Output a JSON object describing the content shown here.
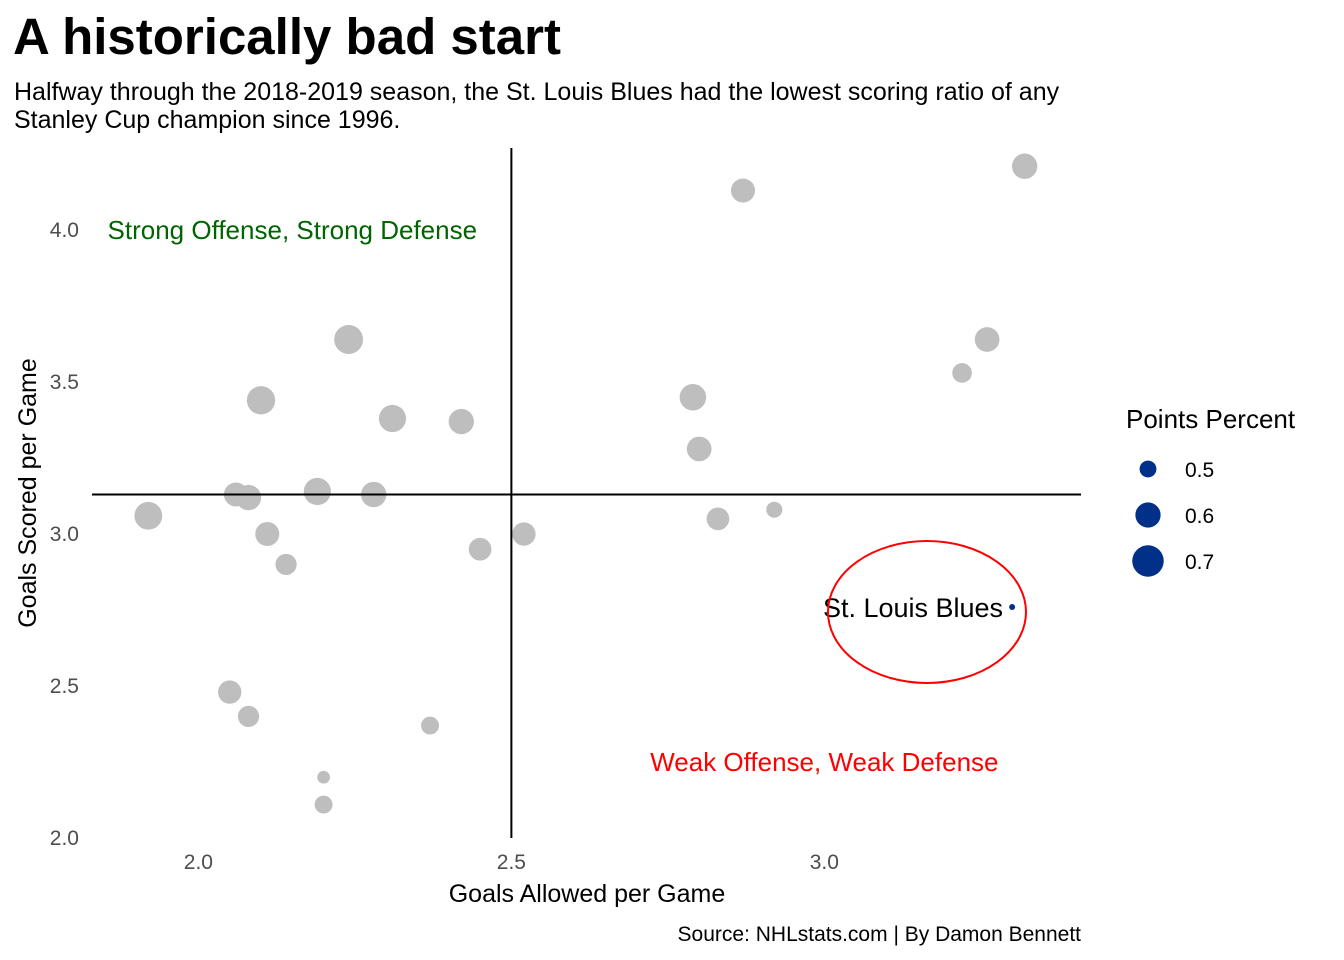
{
  "title": "A historically bad start",
  "subtitle": "Halfway through the 2018-2019 season, the St. Louis Blues had the lowest scoring ratio of any Stanley Cup champion since 1996.",
  "caption": "Source: NHLstats.com | By Damon Bennett",
  "chart_data": {
    "type": "scatter",
    "xlabel": "Goals Allowed per Game",
    "ylabel": "Goals Scored per Game",
    "xlim": [
      1.83,
      3.41
    ],
    "ylim": [
      2.0,
      4.27
    ],
    "xticks": [
      2.0,
      2.5,
      3.0
    ],
    "xtick_labels": [
      "2.0",
      "2.5",
      "3.0"
    ],
    "yticks": [
      2.0,
      2.5,
      3.0,
      3.5,
      4.0
    ],
    "ytick_labels": [
      "2.0",
      "2.5",
      "3.0",
      "3.5",
      "4.0"
    ],
    "grid": false,
    "reference_lines": {
      "x": 2.5,
      "y": 3.13
    },
    "colors": {
      "points": "#bebebe",
      "highlight": "#003087",
      "strong": "#006400",
      "weak": "#ff0000",
      "circle": "#ff0000",
      "lines": "#000000"
    },
    "quadrant_labels": [
      {
        "text": "Strong Offense, Strong Defense",
        "x": 2.15,
        "y": 4.0,
        "color": "#006400"
      },
      {
        "text": "Weak Offense, Weak Defense",
        "x": 3.0,
        "y": 2.25,
        "color": "#ff0000"
      }
    ],
    "legend": {
      "title": "Points Percent",
      "position": "right",
      "entries": [
        {
          "label": "0.5",
          "value": 0.5
        },
        {
          "label": "0.6",
          "value": 0.6
        },
        {
          "label": "0.7",
          "value": 0.7
        }
      ]
    },
    "highlight": {
      "label": "St. Louis Blues",
      "x": 3.3,
      "y": 2.76,
      "points_percent": 0.43
    },
    "points": [
      {
        "x": 1.92,
        "y": 3.06,
        "points_percent": 0.66
      },
      {
        "x": 2.06,
        "y": 3.13,
        "points_percent": 0.6
      },
      {
        "x": 2.08,
        "y": 3.12,
        "points_percent": 0.62
      },
      {
        "x": 2.1,
        "y": 3.44,
        "points_percent": 0.67
      },
      {
        "x": 2.11,
        "y": 3.0,
        "points_percent": 0.6
      },
      {
        "x": 2.14,
        "y": 2.9,
        "points_percent": 0.56
      },
      {
        "x": 2.05,
        "y": 2.48,
        "points_percent": 0.59
      },
      {
        "x": 2.08,
        "y": 2.4,
        "points_percent": 0.56
      },
      {
        "x": 2.19,
        "y": 3.14,
        "points_percent": 0.65
      },
      {
        "x": 2.2,
        "y": 2.2,
        "points_percent": 0.47
      },
      {
        "x": 2.2,
        "y": 2.11,
        "points_percent": 0.52
      },
      {
        "x": 2.24,
        "y": 3.64,
        "points_percent": 0.68
      },
      {
        "x": 2.28,
        "y": 3.13,
        "points_percent": 0.62
      },
      {
        "x": 2.31,
        "y": 3.38,
        "points_percent": 0.65
      },
      {
        "x": 2.37,
        "y": 2.37,
        "points_percent": 0.52
      },
      {
        "x": 2.42,
        "y": 3.37,
        "points_percent": 0.62
      },
      {
        "x": 2.45,
        "y": 2.95,
        "points_percent": 0.58
      },
      {
        "x": 2.52,
        "y": 3.0,
        "points_percent": 0.59
      },
      {
        "x": 2.79,
        "y": 3.45,
        "points_percent": 0.64
      },
      {
        "x": 2.8,
        "y": 3.28,
        "points_percent": 0.61
      },
      {
        "x": 2.83,
        "y": 3.05,
        "points_percent": 0.58
      },
      {
        "x": 2.87,
        "y": 4.13,
        "points_percent": 0.6
      },
      {
        "x": 2.92,
        "y": 3.08,
        "points_percent": 0.5
      },
      {
        "x": 3.22,
        "y": 3.53,
        "points_percent": 0.54
      },
      {
        "x": 3.26,
        "y": 3.64,
        "points_percent": 0.61
      },
      {
        "x": 3.32,
        "y": 4.21,
        "points_percent": 0.62
      }
    ]
  }
}
